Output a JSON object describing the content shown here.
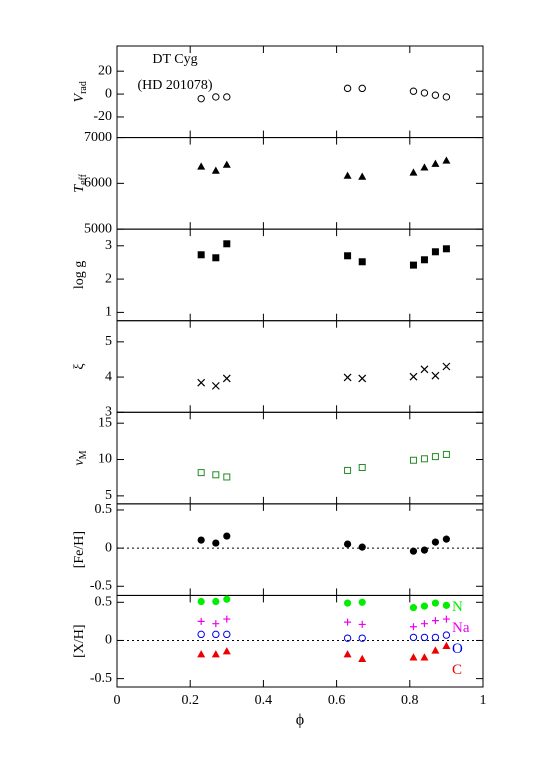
{
  "chart_data": [
    {
      "type": "scatter",
      "ylabel": "V",
      "ylabel_sub": "rad",
      "annotation": [
        "DT Cyg",
        "(HD 201078)"
      ],
      "ylim": [
        -38,
        42
      ],
      "yticks": [
        -20,
        0,
        20
      ],
      "x": [
        0.23,
        0.27,
        0.3,
        0.63,
        0.67,
        0.81,
        0.84,
        0.87,
        0.9
      ],
      "series": [
        {
          "marker": "open-circle",
          "color": "#000000",
          "values": [
            -4,
            -2.5,
            -2.5,
            5,
            5,
            2.5,
            1,
            -1,
            -2.5
          ]
        }
      ]
    },
    {
      "type": "scatter",
      "ylabel": "T",
      "ylabel_sub": "eff",
      "ylim": [
        5000,
        7000
      ],
      "yticks": [
        5000,
        6000,
        7000
      ],
      "x": [
        0.23,
        0.27,
        0.3,
        0.63,
        0.67,
        0.81,
        0.84,
        0.87,
        0.9
      ],
      "series": [
        {
          "marker": "triangle",
          "color": "#000000",
          "values": [
            6370,
            6280,
            6410,
            6170,
            6150,
            6240,
            6350,
            6430,
            6500
          ]
        }
      ]
    },
    {
      "type": "scatter",
      "ylabel": "log g",
      "ylim": [
        0.75,
        3.5
      ],
      "yticks": [
        1,
        2,
        3
      ],
      "x": [
        0.23,
        0.27,
        0.3,
        0.63,
        0.67,
        0.81,
        0.84,
        0.87,
        0.9
      ],
      "series": [
        {
          "marker": "square",
          "color": "#000000",
          "values": [
            2.73,
            2.64,
            3.06,
            2.7,
            2.52,
            2.42,
            2.58,
            2.82,
            2.91
          ]
        }
      ]
    },
    {
      "type": "scatter",
      "ylabel": "ξ",
      "ylim": [
        3,
        5.6
      ],
      "yticks": [
        3,
        4,
        5
      ],
      "x": [
        0.23,
        0.27,
        0.3,
        0.63,
        0.67,
        0.81,
        0.84,
        0.87,
        0.9
      ],
      "series": [
        {
          "marker": "x",
          "color": "#000000",
          "values": [
            3.84,
            3.75,
            3.96,
            3.99,
            3.96,
            4.01,
            4.22,
            4.04,
            4.3
          ]
        }
      ]
    },
    {
      "type": "scatter",
      "ylabel": "ν",
      "ylabel_sub": "M",
      "ylim": [
        3.9,
        16.5
      ],
      "yticks": [
        5,
        10,
        15
      ],
      "x": [
        0.23,
        0.27,
        0.3,
        0.63,
        0.67,
        0.81,
        0.84,
        0.87,
        0.9
      ],
      "series": [
        {
          "marker": "open-square",
          "color": "#228b22",
          "values": [
            8.2,
            7.9,
            7.6,
            8.5,
            8.9,
            9.9,
            10.1,
            10.4,
            10.7
          ]
        }
      ]
    },
    {
      "type": "scatter",
      "ylabel": "[Fe/H]",
      "zero_line": true,
      "ylim": [
        -0.62,
        0.58
      ],
      "yticks": [
        -0.5,
        0,
        0.5
      ],
      "x": [
        0.23,
        0.27,
        0.3,
        0.63,
        0.67,
        0.81,
        0.84,
        0.87,
        0.9
      ],
      "series": [
        {
          "marker": "circle",
          "color": "#000000",
          "values": [
            0.105,
            0.066,
            0.158,
            0.053,
            0.013,
            -0.04,
            -0.026,
            0.079,
            0.118
          ]
        }
      ]
    },
    {
      "type": "scatter",
      "ylabel": "[X/H]",
      "zero_line": true,
      "xlabel": "ϕ",
      "ylim": [
        -0.61,
        0.59
      ],
      "yticks": [
        -0.5,
        0,
        0.5
      ],
      "xlim": [
        0,
        1
      ],
      "xticks": [
        0,
        0.2,
        0.4,
        0.6,
        0.8,
        1
      ],
      "x": [
        0.23,
        0.27,
        0.3,
        0.63,
        0.67,
        0.81,
        0.84,
        0.87,
        0.9
      ],
      "series": [
        {
          "name": "N",
          "marker": "circle",
          "color": "#00ee00",
          "values": [
            0.51,
            0.51,
            0.54,
            0.49,
            0.5,
            0.43,
            0.45,
            0.49,
            0.46
          ]
        },
        {
          "name": "Na",
          "marker": "plus",
          "color": "#ee00ee",
          "values": [
            0.25,
            0.22,
            0.28,
            0.24,
            0.21,
            0.18,
            0.22,
            0.26,
            0.28
          ]
        },
        {
          "name": "O",
          "marker": "open-circle",
          "color": "#0000ee",
          "values": [
            0.08,
            0.08,
            0.08,
            0.03,
            0.03,
            0.04,
            0.04,
            0.04,
            0.07
          ]
        },
        {
          "name": "C",
          "marker": "triangle",
          "color": "#ee0000",
          "values": [
            -0.18,
            -0.18,
            -0.14,
            -0.18,
            -0.24,
            -0.22,
            -0.22,
            -0.13,
            -0.07
          ]
        }
      ]
    }
  ]
}
